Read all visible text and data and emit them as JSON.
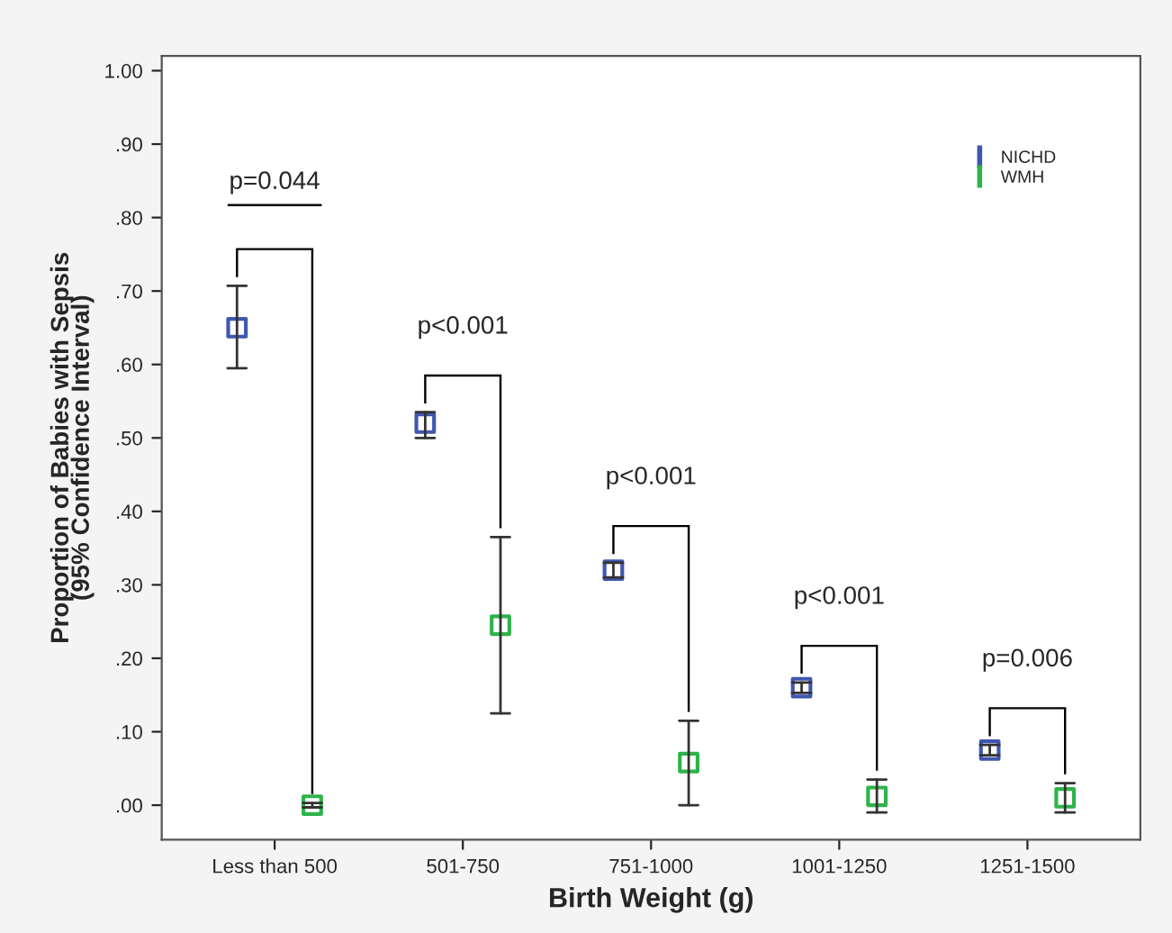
{
  "chart_data": {
    "type": "scatter",
    "xlabel": "Birth Weight (g)",
    "ylabel": "Proportion of Babies with Sepsis\n(95% Confidence Interval)",
    "categories": [
      "Less than 500",
      "501-750",
      "751-1000",
      "1001-1250",
      "1251-1500"
    ],
    "series": [
      {
        "name": "NICHD",
        "color": "#3f57b0",
        "values": [
          0.65,
          0.52,
          0.32,
          0.16,
          0.075
        ],
        "errors": [
          [
            0.595,
            0.707
          ],
          [
            0.5,
            0.535
          ],
          [
            0.31,
            0.33
          ],
          [
            0.153,
            0.167
          ],
          [
            0.068,
            0.082
          ]
        ]
      },
      {
        "name": "WMH",
        "color": "#2eb34a",
        "values": [
          0.0,
          0.245,
          0.058,
          0.012,
          0.01
        ],
        "errors": [
          [
            -0.003,
            0.003
          ],
          [
            0.125,
            0.365
          ],
          [
            0.0,
            0.115
          ],
          [
            -0.01,
            0.035
          ],
          [
            -0.01,
            0.03
          ]
        ]
      }
    ],
    "annotations": [
      "p=0.044",
      "p<0.001",
      "p<0.001",
      "p<0.001",
      "p=0.006"
    ],
    "ylim": [
      -0.047,
      1.02
    ],
    "yticks": [
      {
        "value": 0,
        "label": ".00"
      },
      {
        "value": 0.1,
        "label": ".10"
      },
      {
        "value": 0.2,
        "label": ".20"
      },
      {
        "value": 0.3,
        "label": ".30"
      },
      {
        "value": 0.4,
        "label": ".40"
      },
      {
        "value": 0.5,
        "label": ".50"
      },
      {
        "value": 0.6,
        "label": ".60"
      },
      {
        "value": 0.7,
        "label": ".70"
      },
      {
        "value": 0.8,
        "label": ".80"
      },
      {
        "value": 0.9,
        "label": ".90"
      },
      {
        "value": 1.0,
        "label": "1.00"
      }
    ],
    "marker": "square",
    "grid": false,
    "legend": "top right"
  }
}
